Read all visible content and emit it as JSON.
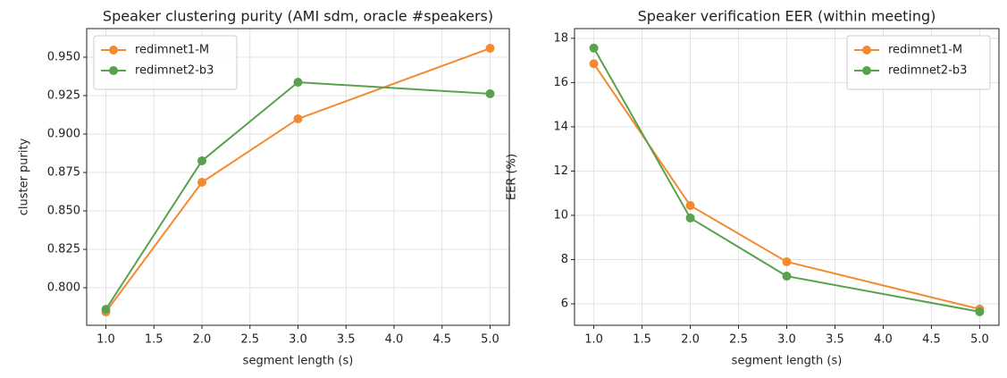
{
  "chart_data": [
    {
      "type": "line",
      "title": "Speaker clustering purity (AMI sdm, oracle #speakers)",
      "x_label": "segment length (s)",
      "y_label": "cluster purity",
      "x": [
        1,
        2,
        3,
        5
      ],
      "series": [
        {
          "name": "redimnet1-M",
          "color": "#f28a30",
          "values": [
            0.7843,
            0.8686,
            0.9099,
            0.9558
          ]
        },
        {
          "name": "redimnet2-b3",
          "color": "#59a14f",
          "values": [
            0.786,
            0.8826,
            0.9337,
            0.9262
          ]
        }
      ],
      "xlim": [
        0.8,
        5.2
      ],
      "xticks": [
        {
          "value": 1,
          "label": "1.0"
        },
        1.5,
        {
          "value": 2,
          "label": "2.0"
        },
        2.5,
        {
          "value": 3,
          "label": "3.0"
        },
        3.5,
        {
          "value": 4,
          "label": "4.0"
        },
        4.5,
        {
          "value": 5,
          "label": "5.0"
        }
      ],
      "ylim": [
        0.7756,
        0.9686
      ],
      "yticks": [
        {
          "value": 0.8,
          "label": "0.800"
        },
        {
          "value": 0.825,
          "label": "0.825"
        },
        {
          "value": 0.85,
          "label": "0.850"
        },
        {
          "value": 0.875,
          "label": "0.875"
        },
        {
          "value": 0.9,
          "label": "0.900"
        },
        {
          "value": 0.925,
          "label": "0.925"
        },
        {
          "value": 0.95,
          "label": "0.950"
        }
      ],
      "grid": true,
      "legend": "upper left"
    },
    {
      "type": "line",
      "title": "Speaker verification EER (within meeting)",
      "x_label": "segment length (s)",
      "y_label": "EER (%)",
      "x": [
        1,
        2,
        3,
        5
      ],
      "series": [
        {
          "name": "redimnet1-M",
          "color": "#f28a30",
          "values": [
            16.85,
            10.44,
            7.9,
            5.76
          ]
        },
        {
          "name": "redimnet2-b3",
          "color": "#59a14f",
          "values": [
            17.56,
            9.88,
            7.25,
            5.64
          ]
        }
      ],
      "xlim": [
        0.8,
        5.2
      ],
      "xticks": [
        {
          "value": 1,
          "label": "1.0"
        },
        1.5,
        {
          "value": 2,
          "label": "2.0"
        },
        2.5,
        {
          "value": 3,
          "label": "3.0"
        },
        3.5,
        {
          "value": 4,
          "label": "4.0"
        },
        4.5,
        {
          "value": 5,
          "label": "5.0"
        }
      ],
      "ylim": [
        5.03,
        18.44
      ],
      "yticks": [
        6,
        8,
        10,
        12,
        14,
        16,
        18
      ],
      "grid": true,
      "legend": "upper right"
    }
  ]
}
